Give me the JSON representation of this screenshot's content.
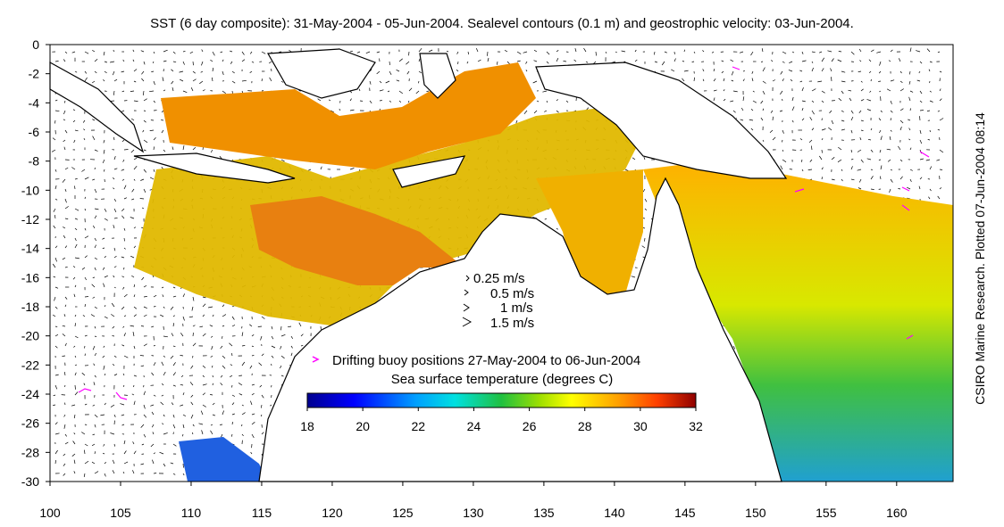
{
  "title": "SST (6 day composite): 31-May-2004 - 05-Jun-2004. Sealevel contours (0.1 m) and geostrophic velocity: 03-Jun-2004.",
  "side_note": "CSIRO Marine Research. Plotted 07-Jun-2004 08:14",
  "map": {
    "lon_range": [
      100,
      164
    ],
    "lat_range": [
      -30,
      0
    ],
    "x_ticks": [
      100,
      105,
      110,
      115,
      120,
      125,
      130,
      135,
      140,
      145,
      150,
      155,
      160
    ],
    "y_ticks": [
      0,
      -2,
      -4,
      -6,
      -8,
      -10,
      -12,
      -14,
      -16,
      -18,
      -20,
      -22,
      -24,
      -26,
      -28,
      -30
    ],
    "land_color": "#ffffff",
    "coast_color": "#000000"
  },
  "velocity_legend": {
    "items": [
      "0.25 m/s",
      "0.5 m/s",
      "1 m/s",
      "1.5 m/s"
    ]
  },
  "buoy_legend": {
    "label": "Drifting buoy positions 27-May-2004 to 06-Jun-2004",
    "color": "#ff00ff"
  },
  "colorbar": {
    "label": "Sea surface temperature (degrees C)",
    "min": 18,
    "max": 32,
    "ticks": [
      "18",
      "20",
      "22",
      "24",
      "26",
      "28",
      "30",
      "32"
    ]
  }
}
